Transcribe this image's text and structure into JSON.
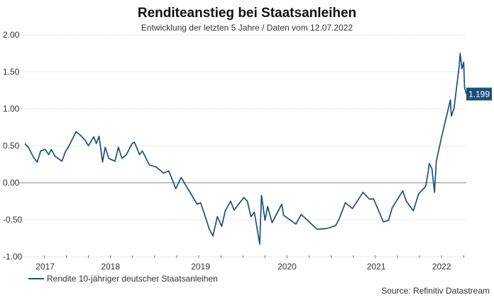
{
  "chart_data": {
    "type": "line",
    "title": "Renditeanstieg bei Staatsanleihen",
    "subtitle": "Entwicklung der letzten 5 Jahre / Daten vom 12.07.2022",
    "xlabel": "",
    "ylabel": "",
    "xlim": [
      2017.53,
      2022.53
    ],
    "ylim": [
      -1.0,
      2.0
    ],
    "yticks": [
      2.0,
      1.5,
      1.0,
      0.5,
      0.0,
      -0.5,
      -1.0
    ],
    "ytick_labels": [
      "2.00",
      "1.50",
      "1.00",
      "0.50",
      "0.00",
      "-0.50",
      "-1.00"
    ],
    "xtick_labels": [
      {
        "label": "2017",
        "x": 2017.76
      },
      {
        "label": "2018",
        "x": 2018.5
      },
      {
        "label": "2019",
        "x": 2019.52
      },
      {
        "label": "2020",
        "x": 2020.5
      },
      {
        "label": "2021",
        "x": 2021.51
      },
      {
        "label": "2022",
        "x": 2022.25
      }
    ],
    "grid": true,
    "legend_position": "bottom-left",
    "series": [
      {
        "name": "Rendite 10-jähriger deutscher Staatsanleihen",
        "color": "#1d4f7c",
        "last_value_label": "1.199",
        "x": [
          2017.53,
          2017.57,
          2017.63,
          2017.67,
          2017.71,
          2017.76,
          2017.8,
          2017.83,
          2017.87,
          2017.95,
          2017.99,
          2018.04,
          2018.11,
          2018.16,
          2018.21,
          2018.25,
          2018.31,
          2018.34,
          2018.37,
          2018.41,
          2018.44,
          2018.48,
          2018.55,
          2018.59,
          2018.63,
          2018.68,
          2018.74,
          2018.77,
          2018.83,
          2018.86,
          2018.94,
          2019.02,
          2019.1,
          2019.16,
          2019.24,
          2019.3,
          2019.34,
          2019.48,
          2019.52,
          2019.56,
          2019.62,
          2019.66,
          2019.71,
          2019.76,
          2019.8,
          2019.86,
          2019.9,
          2020.01,
          2020.05,
          2020.09,
          2020.13,
          2020.19,
          2020.21,
          2020.25,
          2020.28,
          2020.33,
          2020.44,
          2020.46,
          2020.6,
          2020.66,
          2020.84,
          2020.95,
          2021.05,
          2021.09,
          2021.16,
          2021.24,
          2021.36,
          2021.43,
          2021.48,
          2021.59,
          2021.65,
          2021.69,
          2021.81,
          2021.85,
          2021.93,
          2021.99,
          2022.07,
          2022.1,
          2022.11,
          2022.14,
          2022.17,
          2022.19,
          2022.25,
          2022.3,
          2022.35,
          2022.36,
          2022.39,
          2022.45,
          2022.46,
          2022.48,
          2022.5,
          2022.51,
          2022.53
        ],
        "y": [
          0.53,
          0.48,
          0.34,
          0.28,
          0.43,
          0.45,
          0.38,
          0.45,
          0.36,
          0.29,
          0.42,
          0.52,
          0.69,
          0.64,
          0.58,
          0.5,
          0.62,
          0.53,
          0.63,
          0.28,
          0.48,
          0.33,
          0.29,
          0.48,
          0.33,
          0.38,
          0.52,
          0.55,
          0.38,
          0.43,
          0.24,
          0.21,
          0.13,
          0.16,
          -0.08,
          0.07,
          -0.01,
          -0.29,
          -0.27,
          -0.41,
          -0.63,
          -0.72,
          -0.46,
          -0.59,
          -0.38,
          -0.25,
          -0.37,
          -0.2,
          -0.25,
          -0.46,
          -0.4,
          -0.83,
          -0.17,
          -0.51,
          -0.32,
          -0.54,
          -0.29,
          -0.44,
          -0.56,
          -0.43,
          -0.63,
          -0.62,
          -0.58,
          -0.49,
          -0.27,
          -0.35,
          -0.13,
          -0.22,
          -0.22,
          -0.53,
          -0.51,
          -0.34,
          -0.11,
          -0.25,
          -0.38,
          -0.15,
          -0.05,
          0.16,
          0.26,
          0.19,
          -0.13,
          0.29,
          0.62,
          0.87,
          1.12,
          0.9,
          1.0,
          1.58,
          1.75,
          1.54,
          1.63,
          1.29,
          1.199
        ]
      }
    ],
    "source": "Source: Refinitiv Datastream"
  }
}
